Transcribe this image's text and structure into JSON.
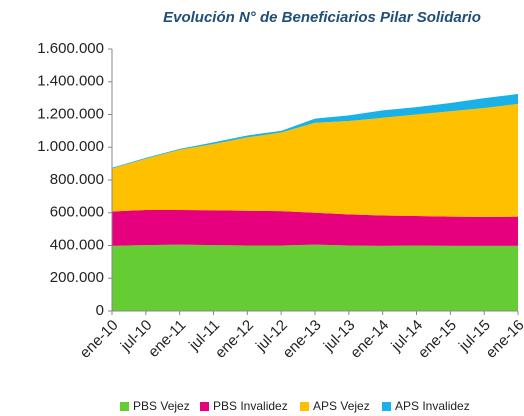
{
  "chart_data": {
    "type": "stacked_area",
    "title": "Evolución N° de Beneficiarios Pilar Solidario",
    "categories": [
      "ene-10",
      "jul-10",
      "ene-11",
      "jul-11",
      "ene-12",
      "jul-12",
      "ene-13",
      "jul-13",
      "ene-14",
      "jul-14",
      "ene-15",
      "jul-15",
      "ene-16"
    ],
    "series": [
      {
        "name": "PBS Vejez",
        "color": "#66cc33",
        "values": [
          398000,
          402000,
          405000,
          402000,
          400000,
          400000,
          405000,
          400000,
          398000,
          400000,
          398000,
          398000,
          398000
        ]
      },
      {
        "name": "PBS Invalidez",
        "color": "#e6007e",
        "values": [
          210000,
          215000,
          212000,
          213000,
          212000,
          210000,
          195000,
          190000,
          185000,
          180000,
          178000,
          177000,
          178000
        ]
      },
      {
        "name": "APS Vejez",
        "color": "#ffc000",
        "values": [
          262000,
          313000,
          368000,
          405000,
          448000,
          480000,
          550000,
          570000,
          597000,
          620000,
          644000,
          665000,
          689000
        ]
      },
      {
        "name": "APS Invalidez",
        "color": "#1ab0e8",
        "values": [
          5000,
          5000,
          5000,
          10000,
          12000,
          10000,
          25000,
          35000,
          45000,
          45000,
          50000,
          60000,
          60000
        ]
      }
    ],
    "ylim": [
      0,
      1600000
    ],
    "yticks": [
      0,
      {
        "value": 200000,
        "label": "200.000"
      },
      {
        "value": 400000,
        "label": "400.000"
      },
      {
        "value": 600000,
        "label": "600.000"
      },
      {
        "value": 800000,
        "label": "800.000"
      },
      {
        "value": 1000000,
        "label": "1.000.000"
      },
      {
        "value": 1200000,
        "label": "1.200.000"
      },
      {
        "value": 1400000,
        "label": "1.400.000"
      },
      {
        "value": 1600000,
        "label": "1.600.000"
      }
    ],
    "grid": false,
    "legend": "bottom"
  }
}
